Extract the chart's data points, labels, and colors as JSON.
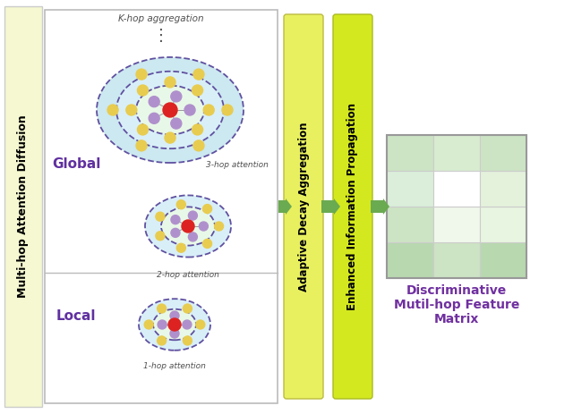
{
  "fig_width": 6.4,
  "fig_height": 4.63,
  "left_band_color": "#f5f8d0",
  "left_band_border": "#cccccc",
  "left_label_text": "Multi-hop Attention Diffusion",
  "inner_panel_bg": "#ffffff",
  "inner_panel_border": "#bbbbbb",
  "bar1_color_top": "#e8f060",
  "bar1_color_bot": "#d8e840",
  "bar1_text": "Adaptive Decay Aggregation",
  "bar2_color_top": "#d4e820",
  "bar2_color_bot": "#c8dc10",
  "bar2_text": "Enhanced Information Propagation",
  "arrow_color": "#6aaa50",
  "matrix_colors": [
    [
      "#b8d8b0",
      "#cce4c4",
      "#b8d8b0"
    ],
    [
      "#cce4c4",
      "#f0f8ec",
      "#e8f5e0"
    ],
    [
      "#daeeda",
      "#ffffff",
      "#e4f2dc"
    ],
    [
      "#cce4c4",
      "#d8ecd0",
      "#cce4c4"
    ]
  ],
  "matrix_border": "#aaaaaa",
  "discriminative_text": "Discriminative\nMutil-hop Feature\nMatrix",
  "discriminative_color": "#7030a0",
  "global_label": "Global",
  "local_label": "Local",
  "k_hop_text": "K-hop aggregation",
  "hop3_text": "3-hop attention",
  "hop2_text": "2-hop attention",
  "hop1_text": "1-hop attention",
  "dots_text": "⋮",
  "node_center_color": "#dd2222",
  "node_inner_color": "#b090cc",
  "node_outer_yellow": "#e8cc50",
  "node_outer_green": "#c8dc50",
  "circle_fill_inner": "#e8f8e8",
  "circle_fill_mid": "#d8eff8",
  "circle_fill_outer": "#cce8f0",
  "circle_dashed_color": "#6050a0",
  "label_color": "#6030a0",
  "annotation_color": "#505050",
  "divider_color": "#bbbbbb"
}
